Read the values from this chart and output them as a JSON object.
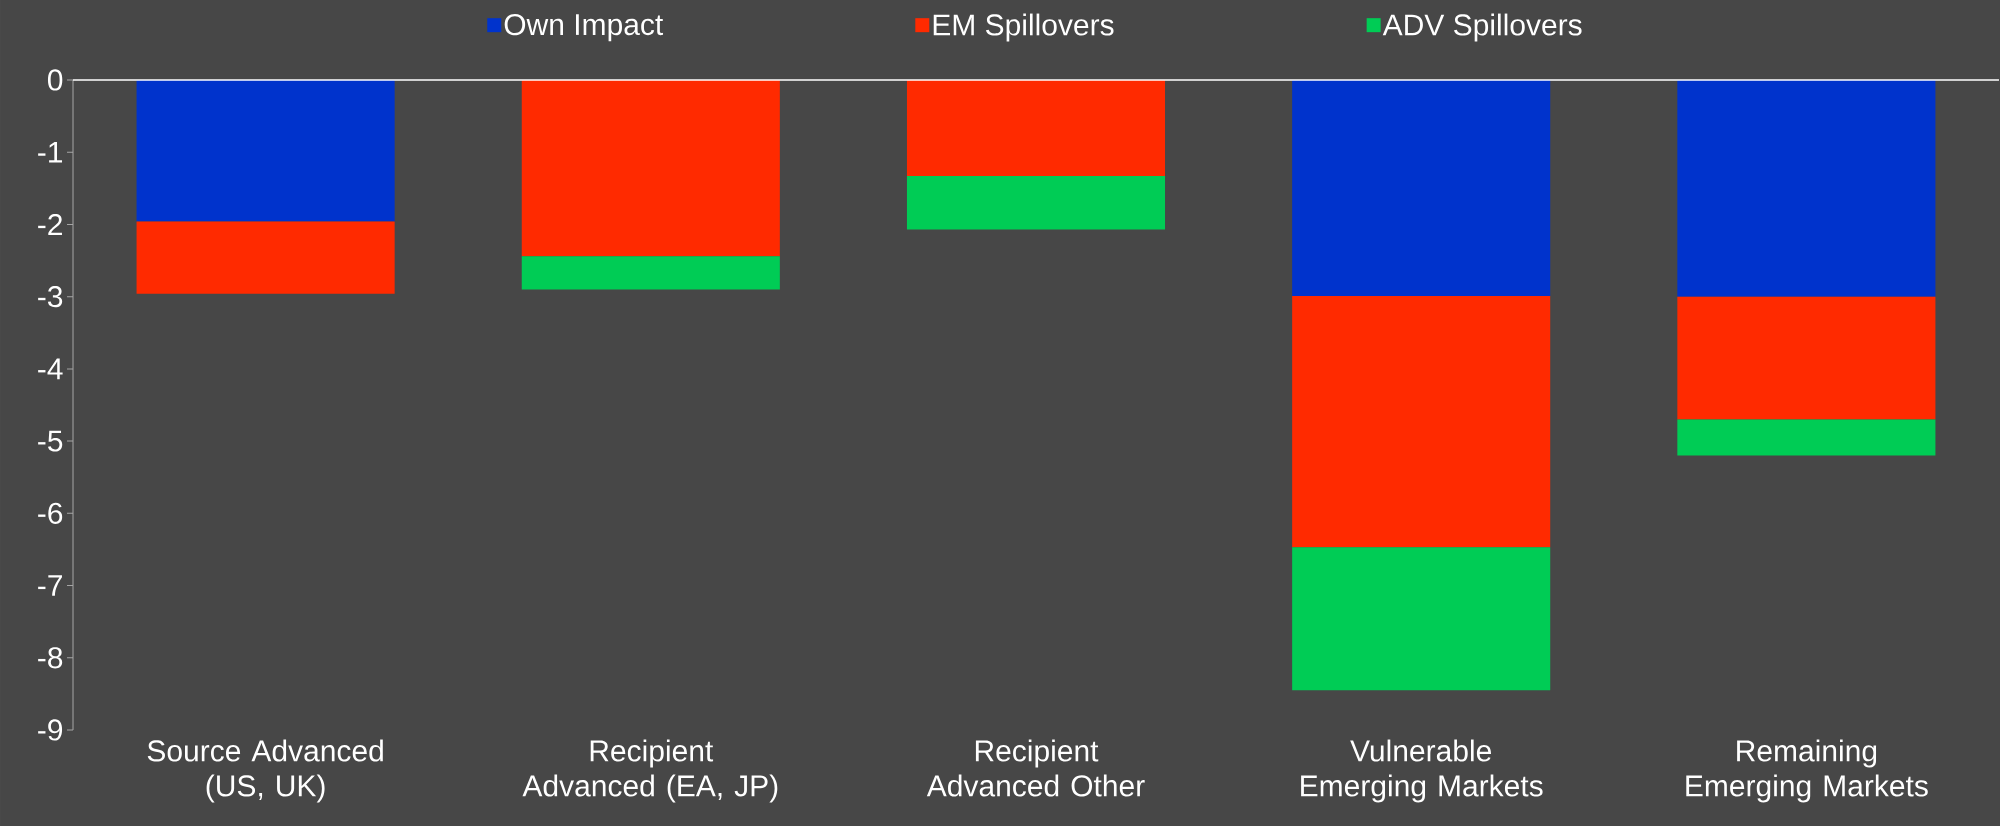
{
  "chart_data": {
    "type": "bar",
    "stacked": true,
    "categories": [
      "Source Advanced (US, UK)",
      "Recipient Advanced (EA, JP)",
      "Recipient Advanced Other",
      "Vulnerable Emerging Markets",
      "Remaining Emerging Markets"
    ],
    "series": [
      {
        "name": "Own Impact",
        "color": "#0033cc",
        "values": [
          -1.96,
          null,
          null,
          -2.99,
          -3.0
        ]
      },
      {
        "name": "EM Spillovers",
        "color": "#ff2a00",
        "values": [
          -1.0,
          -2.44,
          -1.33,
          -3.48,
          -1.7
        ]
      },
      {
        "name": "ADV Spillovers",
        "color": "#00cc55",
        "values": [
          null,
          -0.46,
          -0.74,
          -1.98,
          -0.5
        ]
      }
    ],
    "ylim": [
      -9,
      0
    ],
    "yticks": [
      0,
      -1,
      -2,
      -3,
      -4,
      -5,
      -6,
      -7,
      -8,
      -9
    ],
    "legend": "top",
    "grid": false
  }
}
